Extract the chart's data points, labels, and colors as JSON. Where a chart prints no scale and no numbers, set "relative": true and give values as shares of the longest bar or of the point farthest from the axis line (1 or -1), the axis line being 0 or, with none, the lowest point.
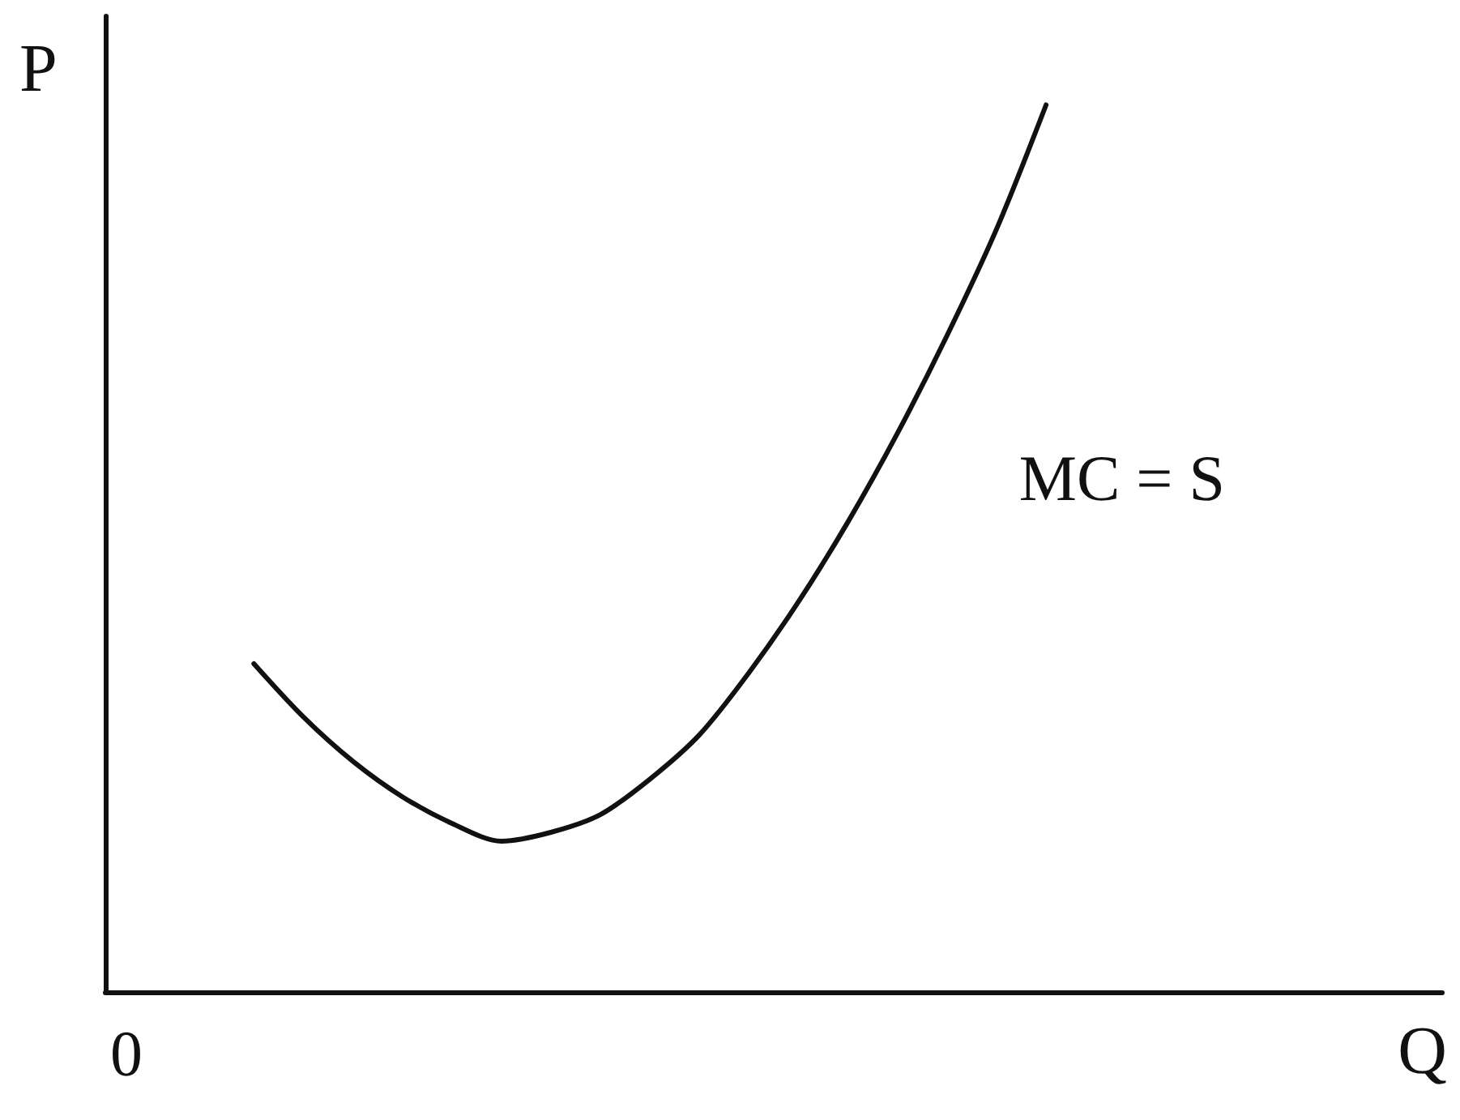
{
  "chart_data": {
    "type": "line",
    "relative": true,
    "xlabel": "Q",
    "ylabel": "P",
    "annotations": [
      "0"
    ],
    "legend": false,
    "grid": false,
    "marker": "none",
    "line_style": "solid",
    "categories": [
      null,
      null,
      null,
      null,
      null,
      null,
      null,
      null,
      null,
      null,
      null,
      null,
      null,
      null,
      null,
      null,
      null,
      null,
      null,
      null,
      null,
      null,
      null,
      null,
      null,
      null,
      null,
      null
    ],
    "series": [
      {
        "name": "MC = S",
        "color": "#111111",
        "values": [
          null,
          null,
          null,
          0.37,
          0.31,
          0.26,
          0.22,
          0.19,
          0.17,
          0.18,
          0.2,
          0.24,
          0.29,
          0.36,
          0.44,
          0.53,
          0.63,
          0.74,
          0.86,
          1,
          null,
          null,
          null,
          null,
          null,
          null,
          null,
          null
        ]
      }
    ]
  }
}
